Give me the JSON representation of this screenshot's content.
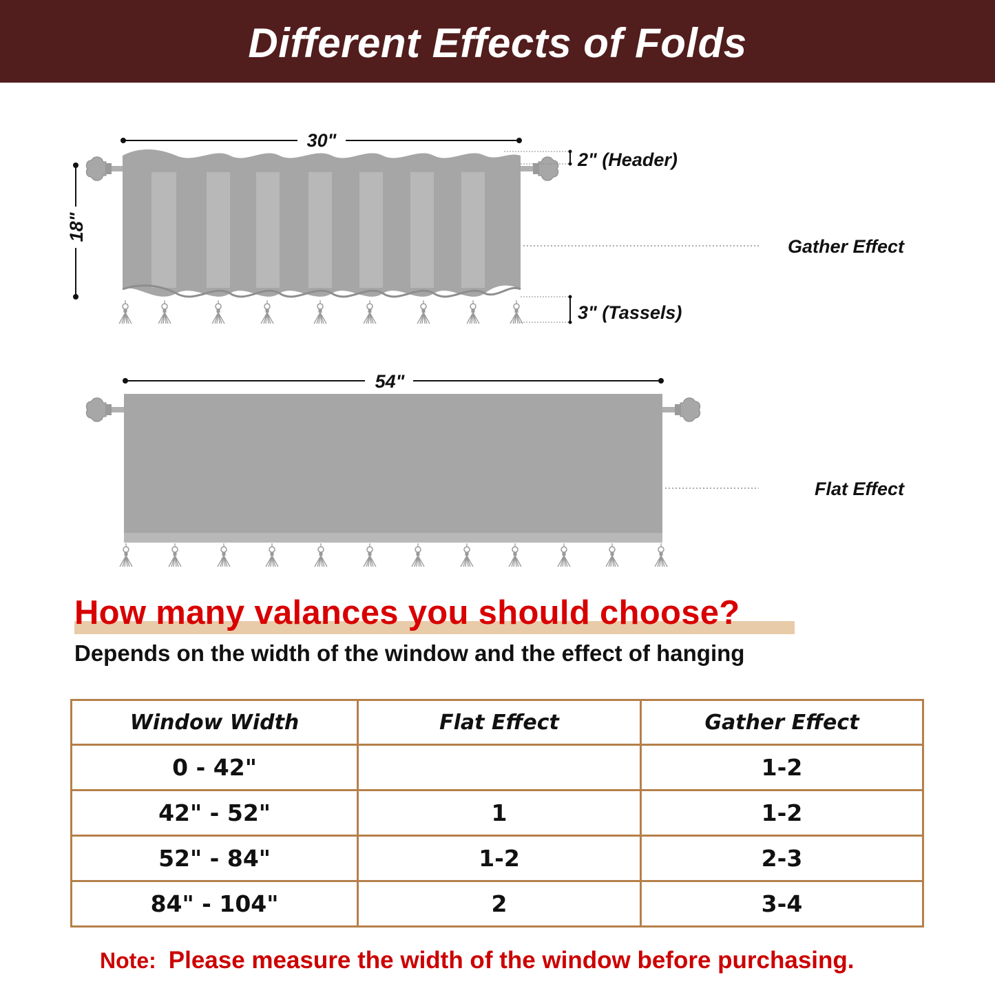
{
  "banner": {
    "title": "Different Effects of Folds"
  },
  "gather_diagram": {
    "width_label": "30\"",
    "height_label": "18\"",
    "header_label": "2\" (Header)",
    "tassels_label": "3\" (Tassels)",
    "effect_label": "Gather Effect"
  },
  "flat_diagram": {
    "width_label": "54\"",
    "effect_label": "Flat Effect"
  },
  "colors": {
    "banner": "#521d1d",
    "fabric": "#a6a6a6",
    "question": "#d80000",
    "table_border": "#b5804a",
    "note": "#cc0000"
  },
  "question": {
    "title": "How many valances you should choose?",
    "subtitle": "Depends on the width of the window and the effect of hanging"
  },
  "table": {
    "headers": [
      "Window Width",
      "Flat Effect",
      "Gather Effect"
    ],
    "rows": [
      {
        "width": "0 - 42\"",
        "flat": "",
        "gather": "1-2"
      },
      {
        "width": "42\" - 52\"",
        "flat": "1",
        "gather": "1-2"
      },
      {
        "width": "52\" - 84\"",
        "flat": "1-2",
        "gather": "2-3"
      },
      {
        "width": "84\" - 104\"",
        "flat": "2",
        "gather": "3-4"
      }
    ]
  },
  "note": {
    "label": "Note:",
    "text": "Please measure the width of the window before purchasing."
  }
}
